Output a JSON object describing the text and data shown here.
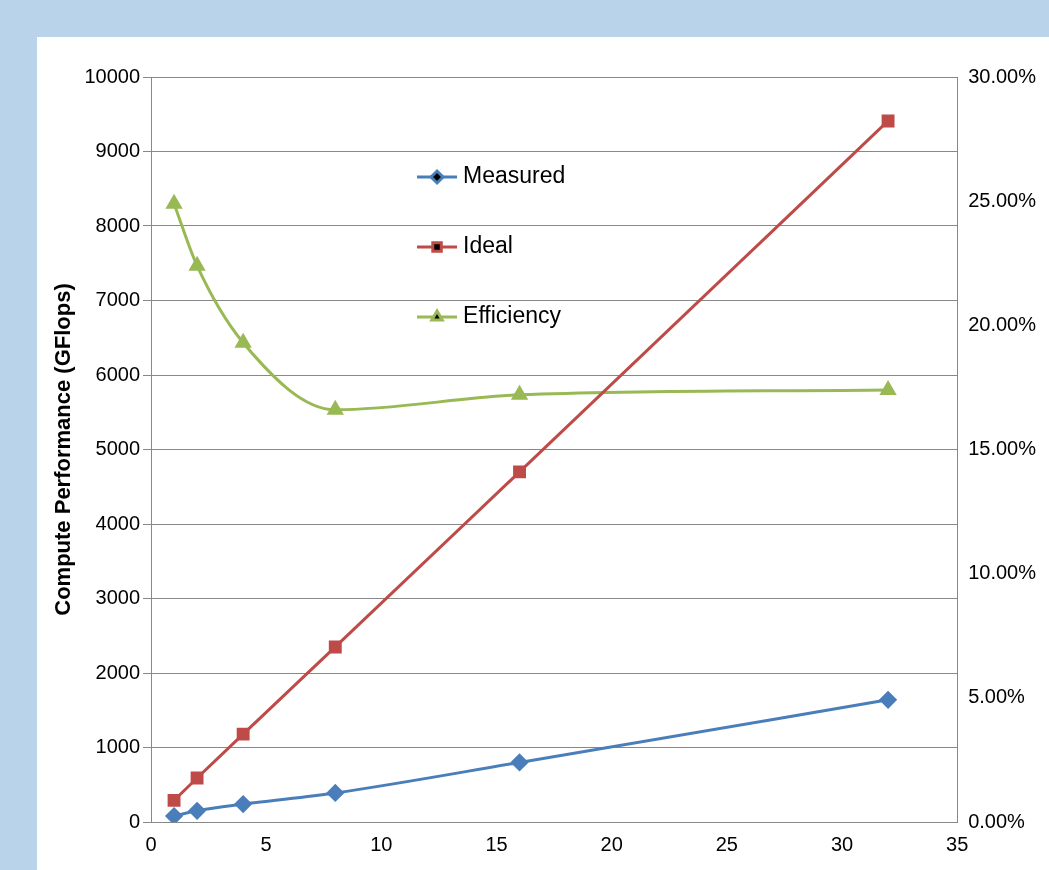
{
  "chart_data": {
    "type": "line",
    "ylabel": "Compute Performance (GFlops)",
    "x": [
      1,
      2,
      4,
      8,
      16,
      32
    ],
    "xlim": [
      0,
      35
    ],
    "xticks": [
      0,
      5,
      10,
      15,
      20,
      25,
      30,
      35
    ],
    "ylim": [
      0,
      10000
    ],
    "yticks": [
      0,
      1000,
      2000,
      3000,
      4000,
      5000,
      6000,
      7000,
      8000,
      9000,
      10000
    ],
    "y2lim": [
      0,
      30
    ],
    "y2ticks": [
      {
        "value": 0,
        "label": "0.00%"
      },
      {
        "value": 5,
        "label": "5.00%"
      },
      {
        "value": 10,
        "label": "10.00%"
      },
      {
        "value": 15,
        "label": "15.00%"
      },
      {
        "value": 20,
        "label": "20.00%"
      },
      {
        "value": 25,
        "label": "25.00%"
      },
      {
        "value": 30,
        "label": "30.00%"
      }
    ],
    "series": [
      {
        "name": "Measured",
        "color": "#4a7ebb",
        "marker": "diamond",
        "values": [
          80,
          150,
          240,
          390,
          800,
          1640
        ]
      },
      {
        "name": "Ideal",
        "color": "#be4b48",
        "marker": "square",
        "values": [
          290,
          590,
          1180,
          2350,
          4700,
          9410
        ]
      },
      {
        "name": "Efficiency",
        "color": "#98b954",
        "marker": "triangle",
        "axis": "y2",
        "values": [
          24.9,
          22.4,
          19.3,
          16.6,
          17.2,
          17.4
        ]
      }
    ],
    "grid": "y",
    "legend": "top",
    "line_style": "solid"
  }
}
